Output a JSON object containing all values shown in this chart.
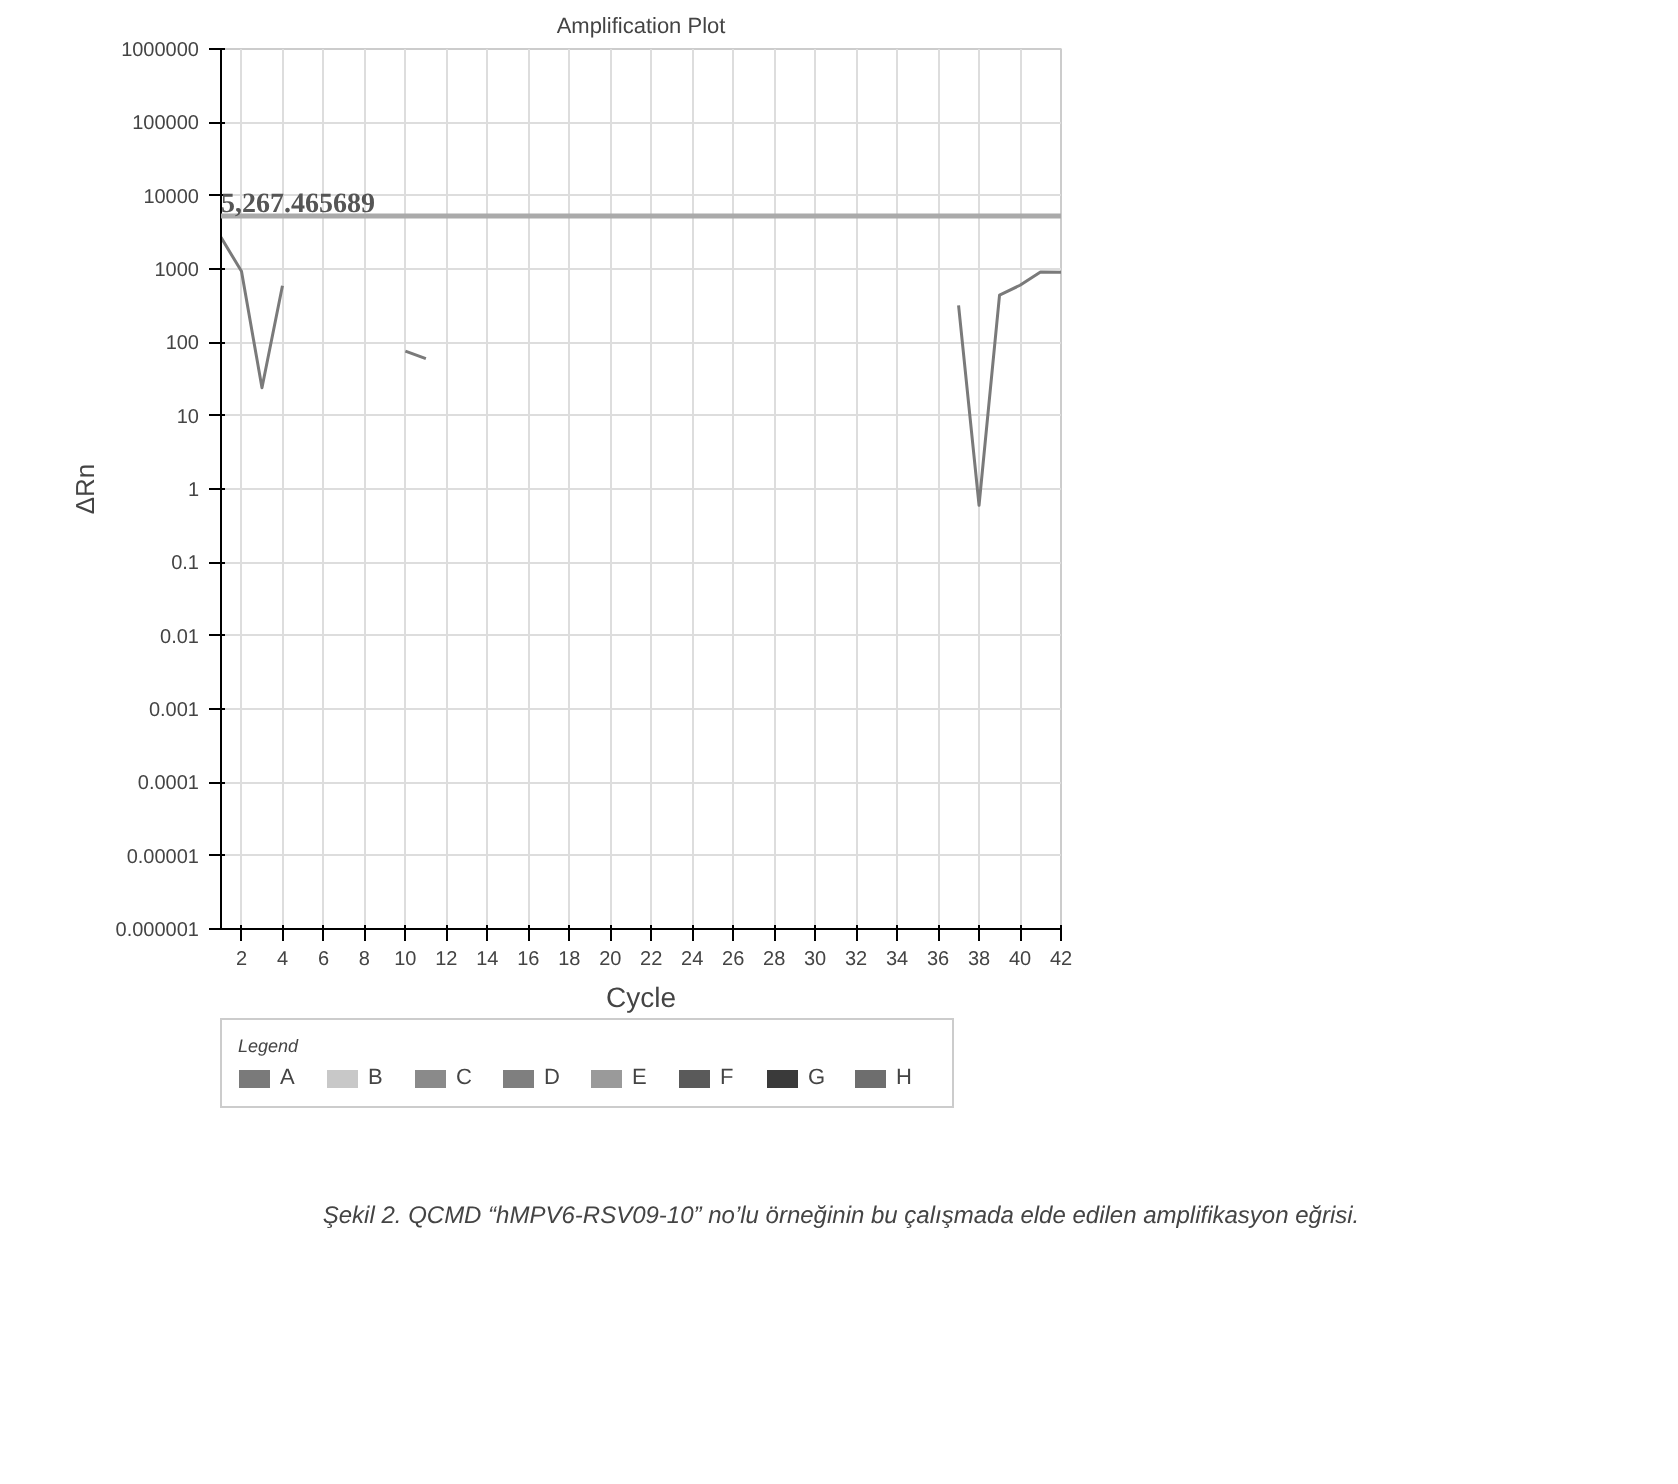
{
  "chart_data": {
    "type": "line",
    "title": "Amplification Plot",
    "xlabel": "Cycle",
    "ylabel": "ΔRn",
    "legend_title": "Legend",
    "annotations": [
      "Şekil 2. QCMD “hMPV6-RSV09-10” no’lu örneğinin bu çalışmada elde edilen amplifikasyon eğrisi."
    ],
    "x": [
      1,
      2,
      3,
      4,
      5,
      6,
      7,
      8,
      9,
      10,
      11,
      12,
      13,
      14,
      15,
      16,
      17,
      18,
      19,
      20,
      21,
      22,
      23,
      24,
      25,
      26,
      27,
      28,
      29,
      30,
      31,
      32,
      33,
      34,
      35,
      36,
      37,
      38,
      39,
      40,
      41,
      42
    ],
    "series": [
      {
        "name": "A",
        "color": "#7a7a7a",
        "values": [
          2700,
          930,
          24,
          590,
          null,
          null,
          null,
          null,
          null,
          76,
          60,
          null,
          null,
          null,
          null,
          null,
          null,
          null,
          null,
          null,
          null,
          null,
          null,
          null,
          null,
          null,
          null,
          null,
          null,
          null,
          null,
          null,
          null,
          null,
          null,
          null,
          320,
          0.6,
          440,
          600,
          910,
          900
        ]
      },
      {
        "name": "B",
        "color": "#c8c8c8",
        "values": [
          null,
          null,
          null,
          null,
          null,
          null,
          null,
          null,
          null,
          null,
          null,
          null,
          null,
          null,
          null,
          null,
          null,
          null,
          null,
          null,
          null,
          null,
          null,
          null,
          null,
          null,
          null,
          null,
          null,
          null,
          null,
          null,
          null,
          null,
          null,
          null,
          null,
          null,
          null,
          null,
          null,
          null
        ]
      },
      {
        "name": "C",
        "color": "#8a8a8a",
        "values": [
          null,
          null,
          null,
          null,
          null,
          null,
          null,
          null,
          null,
          null,
          null,
          null,
          null,
          null,
          null,
          null,
          null,
          null,
          null,
          null,
          null,
          null,
          null,
          null,
          null,
          null,
          null,
          null,
          null,
          null,
          null,
          null,
          null,
          null,
          null,
          null,
          null,
          null,
          null,
          null,
          null,
          null
        ]
      },
      {
        "name": "D",
        "color": "#7f7f7f",
        "values": [
          null,
          null,
          null,
          null,
          null,
          null,
          null,
          null,
          null,
          null,
          null,
          null,
          null,
          null,
          null,
          null,
          null,
          null,
          null,
          null,
          null,
          null,
          null,
          null,
          null,
          null,
          null,
          null,
          null,
          null,
          null,
          null,
          null,
          null,
          null,
          null,
          null,
          null,
          null,
          null,
          null,
          null
        ]
      },
      {
        "name": "E",
        "color": "#9a9a9a",
        "values": [
          null,
          null,
          null,
          null,
          null,
          null,
          null,
          null,
          null,
          null,
          null,
          null,
          null,
          null,
          null,
          null,
          null,
          null,
          null,
          null,
          null,
          null,
          null,
          null,
          null,
          null,
          null,
          null,
          null,
          null,
          null,
          null,
          null,
          null,
          null,
          null,
          null,
          null,
          null,
          null,
          null,
          null
        ]
      },
      {
        "name": "F",
        "color": "#5a5a5a",
        "values": [
          null,
          null,
          null,
          null,
          null,
          null,
          null,
          null,
          null,
          null,
          null,
          null,
          null,
          null,
          null,
          null,
          null,
          null,
          null,
          null,
          null,
          null,
          null,
          null,
          null,
          null,
          null,
          null,
          null,
          null,
          null,
          null,
          null,
          null,
          null,
          null,
          null,
          null,
          null,
          null,
          null,
          null
        ]
      },
      {
        "name": "G",
        "color": "#3a3a3a",
        "values": [
          null,
          null,
          null,
          null,
          null,
          null,
          null,
          null,
          null,
          null,
          null,
          null,
          null,
          null,
          null,
          null,
          null,
          null,
          null,
          null,
          null,
          null,
          null,
          null,
          null,
          null,
          null,
          null,
          null,
          null,
          null,
          null,
          null,
          null,
          null,
          null,
          null,
          null,
          null,
          null,
          null,
          null
        ]
      },
      {
        "name": "H",
        "color": "#6e6e6e",
        "values": [
          null,
          null,
          null,
          null,
          null,
          null,
          null,
          null,
          null,
          null,
          null,
          null,
          null,
          null,
          null,
          null,
          null,
          null,
          null,
          null,
          null,
          null,
          null,
          null,
          null,
          null,
          null,
          null,
          null,
          null,
          null,
          null,
          null,
          null,
          null,
          null,
          null,
          null,
          null,
          null,
          null,
          null
        ]
      }
    ],
    "log": "y",
    "xlim": [
      1,
      42
    ],
    "xticks": [
      2,
      4,
      6,
      8,
      10,
      12,
      14,
      16,
      18,
      20,
      22,
      24,
      26,
      28,
      30,
      32,
      34,
      36,
      38,
      40,
      42
    ],
    "ylim": [
      1e-06,
      1000000
    ],
    "yticks": [
      {
        "value": 1e-06,
        "label": "0.000001"
      },
      {
        "value": 1e-05,
        "label": "0.00001"
      },
      0.0001,
      0.001,
      0.01,
      0.1,
      1,
      10,
      100,
      1000,
      10000,
      100000,
      1000000
    ],
    "ref_lines": [
      {
        "axis": "y",
        "value": 5267.465689,
        "label": "5,267.465689",
        "color": "#aaaaaa"
      }
    ],
    "grid": true,
    "legend": "bottom",
    "line_style": "solid",
    "marker": "none"
  }
}
